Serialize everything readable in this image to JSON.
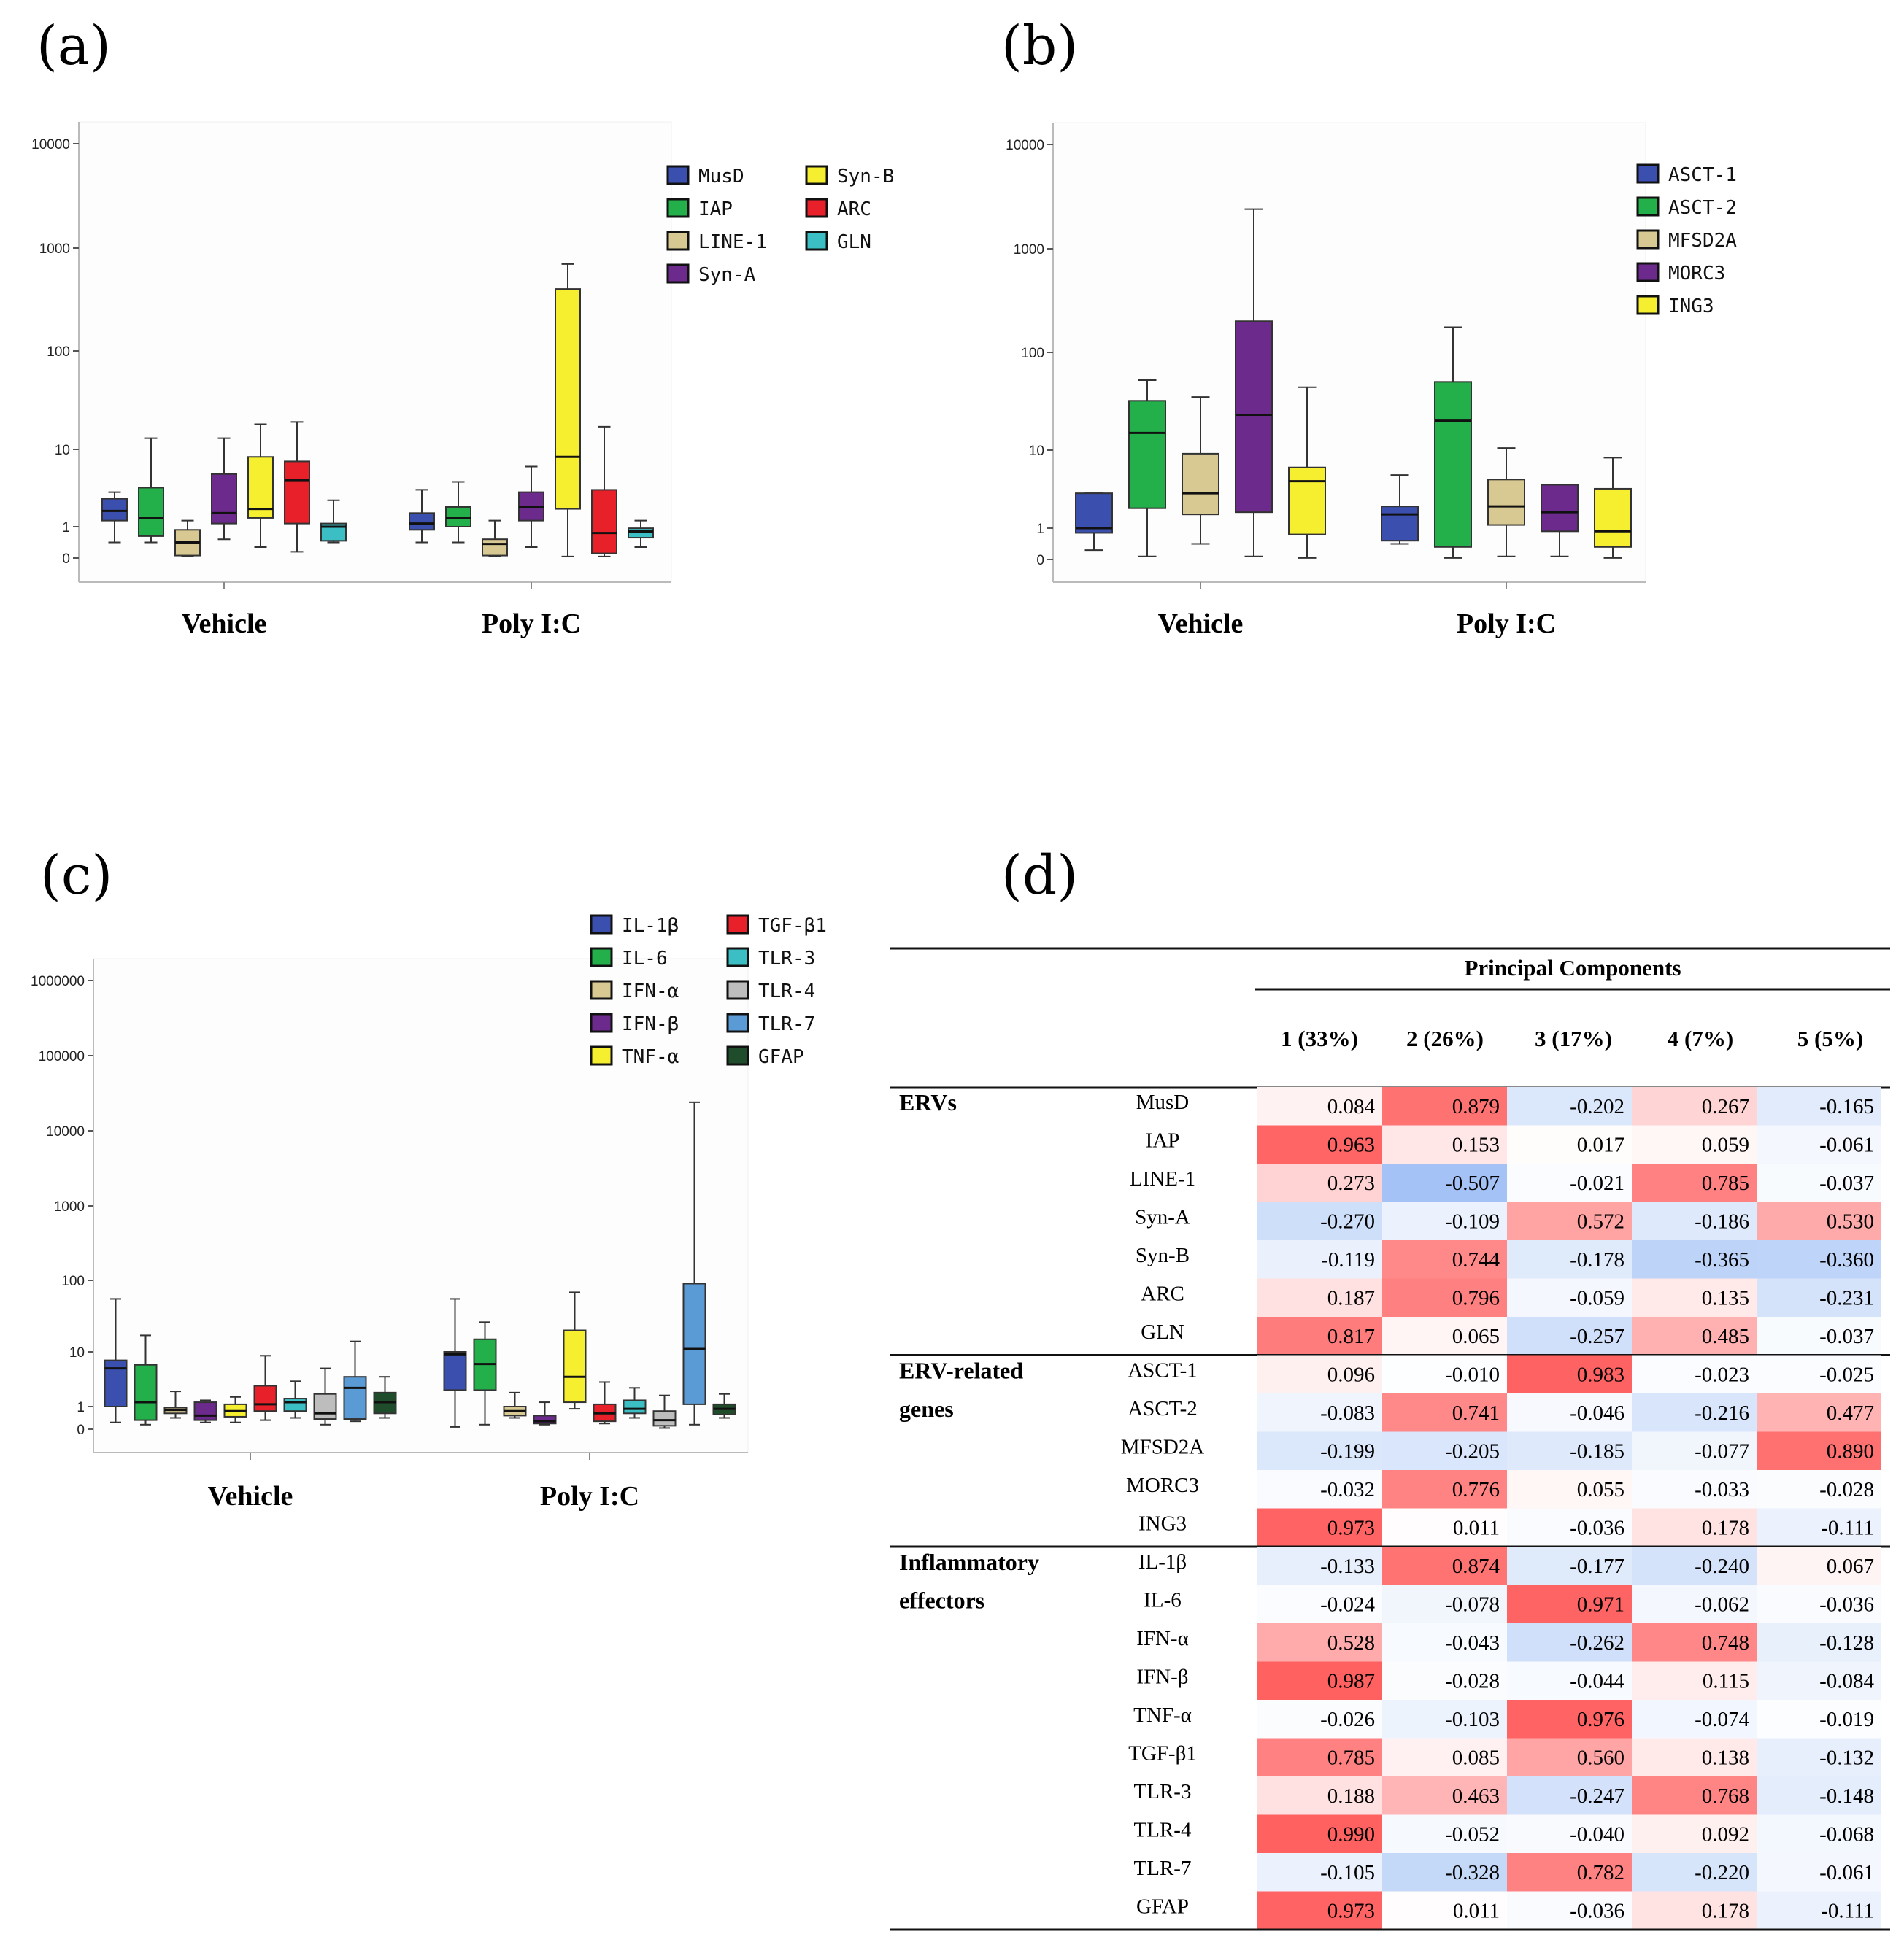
{
  "panel_labels": [
    "(a)",
    "(b)",
    "(c)",
    "(d)"
  ],
  "chart_data": [
    {
      "type": "boxplot",
      "panel": "(a)",
      "yscale": "log",
      "yticks": [
        "0",
        "1",
        "10",
        "100",
        "1000",
        "10000"
      ],
      "groups": [
        "Vehicle",
        "Poly I:C"
      ],
      "legend": [
        "MusD",
        "IAP",
        "LINE-1",
        "Syn-A",
        "Syn-B",
        "ARC",
        "GLN"
      ],
      "colors": [
        "#3a4fae",
        "#23b04a",
        "#d8c891",
        "#6b2a8c",
        "#f5ef30",
        "#e8202a",
        "#3bbfc4"
      ],
      "series": [
        {
          "name": "MusD",
          "data": [
            [
              0.5,
              1.2,
              1.6,
              2.3,
              2.8
            ],
            [
              0.5,
              0.9,
              1.1,
              1.5,
              3.0
            ]
          ]
        },
        {
          "name": "IAP",
          "data": [
            [
              0.5,
              0.7,
              1.3,
              3.2,
              13
            ],
            [
              0.5,
              1.0,
              1.3,
              1.8,
              3.8
            ]
          ]
        },
        {
          "name": "LINE-1",
          "data": [
            [
              0.05,
              0.08,
              0.5,
              0.9,
              1.2
            ],
            [
              0.05,
              0.08,
              0.45,
              0.6,
              1.2
            ]
          ]
        },
        {
          "name": "Syn-A",
          "data": [
            [
              0.6,
              1.1,
              1.5,
              4.8,
              13
            ],
            [
              0.35,
              1.2,
              1.8,
              2.8,
              6.0
            ]
          ]
        },
        {
          "name": "Syn-B",
          "data": [
            [
              0.35,
              1.3,
              1.7,
              8.0,
              18
            ],
            [
              0.05,
              1.7,
              8.0,
              400,
              700
            ]
          ]
        },
        {
          "name": "ARC",
          "data": [
            [
              0.2,
              1.1,
              4.0,
              7.0,
              19
            ],
            [
              0.05,
              0.15,
              0.8,
              3.0,
              17
            ]
          ]
        },
        {
          "name": "GLN",
          "data": [
            [
              0.5,
              0.55,
              1.0,
              1.1,
              2.2
            ],
            [
              0.35,
              0.65,
              0.85,
              0.95,
              1.2
            ]
          ]
        }
      ]
    },
    {
      "type": "boxplot",
      "panel": "(b)",
      "yscale": "log",
      "yticks": [
        "0",
        "1",
        "10",
        "100",
        "1000",
        "10000"
      ],
      "groups": [
        "Vehicle",
        "Poly I:C"
      ],
      "legend": [
        "ASCT-1",
        "ASCT-2",
        "MFSD2A",
        "MORC3",
        "ING3"
      ],
      "colors": [
        "#3a4fae",
        "#23b04a",
        "#d8c891",
        "#6b2a8c",
        "#f5ef30"
      ],
      "series": [
        {
          "name": "ASCT-1",
          "data": [
            [
              0.3,
              0.85,
              1.0,
              2.8,
              2.8
            ],
            [
              0.5,
              0.6,
              1.5,
              1.9,
              4.8
            ]
          ]
        },
        {
          "name": "ASCT-2",
          "data": [
            [
              0.1,
              1.8,
              15,
              32,
              52
            ],
            [
              0.05,
              0.4,
              20,
              50,
              175
            ]
          ]
        },
        {
          "name": "MFSD2A",
          "data": [
            [
              0.5,
              1.5,
              2.8,
              9.0,
              35
            ],
            [
              0.1,
              1.1,
              1.9,
              4.2,
              10.5
            ]
          ]
        },
        {
          "name": "MORC3",
          "data": [
            [
              0.1,
              1.6,
              23,
              200,
              2400
            ],
            [
              0.1,
              0.9,
              1.6,
              3.6,
              3.6
            ]
          ]
        },
        {
          "name": "ING3",
          "data": [
            [
              0.05,
              0.8,
              4.0,
              6.0,
              44
            ],
            [
              0.05,
              0.4,
              0.9,
              3.2,
              8.0
            ]
          ]
        }
      ]
    },
    {
      "type": "boxplot",
      "panel": "(c)",
      "yscale": "log",
      "yticks": [
        "0",
        "1",
        "10",
        "100",
        "1000",
        "10000",
        "100000",
        "1000000"
      ],
      "groups": [
        "Vehicle",
        "Poly I:C"
      ],
      "legend": [
        "IL-1β",
        "IL-6",
        "IFN-α",
        "IFN-β",
        "TNF-α",
        "TGF-β1",
        "TLR-3",
        "TLR-4",
        "TLR-7",
        "GFAP"
      ],
      "colors": [
        "#3a4fae",
        "#23b04a",
        "#d8c891",
        "#6b2a8c",
        "#f5ef30",
        "#e8202a",
        "#3bbfc4",
        "#bdbdbd",
        "#5b9bd5",
        "#1f4d2b"
      ],
      "series": [
        {
          "name": "IL-1β",
          "data": [
            [
              0.3,
              1.0,
              5.0,
              7.0,
              55
            ],
            [
              0.1,
              2.0,
              9.0,
              10,
              55
            ]
          ]
        },
        {
          "name": "IL-6",
          "data": [
            [
              0.2,
              0.4,
              1.2,
              5.8,
              17
            ],
            [
              0.2,
              2.0,
              6.0,
              15,
              26
            ]
          ]
        },
        {
          "name": "IFN-α",
          "data": [
            [
              0.5,
              0.7,
              0.85,
              0.95,
              1.9
            ],
            [
              0.5,
              0.6,
              0.8,
              1.0,
              1.8
            ]
          ]
        },
        {
          "name": "IFN-β",
          "data": [
            [
              0.3,
              0.4,
              0.6,
              1.2,
              1.3
            ],
            [
              0.2,
              0.25,
              0.35,
              0.6,
              1.2
            ]
          ]
        },
        {
          "name": "TNF-α",
          "data": [
            [
              0.3,
              0.55,
              0.8,
              1.1,
              1.5
            ],
            [
              0.9,
              1.2,
              3.5,
              20,
              68
            ]
          ]
        },
        {
          "name": "TGF-β1",
          "data": [
            [
              0.4,
              0.8,
              1.1,
              2.4,
              8.5
            ],
            [
              0.25,
              0.35,
              0.7,
              1.1,
              2.8
            ]
          ]
        },
        {
          "name": "TLR-3",
          "data": [
            [
              0.5,
              0.8,
              1.2,
              1.4,
              2.9
            ],
            [
              0.5,
              0.7,
              0.9,
              1.3,
              2.2
            ]
          ]
        },
        {
          "name": "TLR-4",
          "data": [
            [
              0.2,
              0.45,
              0.7,
              1.7,
              5.0
            ],
            [
              0.05,
              0.15,
              0.4,
              0.8,
              1.6
            ]
          ]
        },
        {
          "name": "TLR-7",
          "data": [
            [
              0.35,
              0.45,
              2.2,
              3.5,
              14
            ],
            [
              0.2,
              1.1,
              11,
              90,
              24000
            ]
          ]
        },
        {
          "name": "GFAP",
          "data": [
            [
              0.5,
              0.7,
              1.2,
              1.8,
              3.5
            ],
            [
              0.5,
              0.65,
              0.9,
              1.1,
              1.7
            ]
          ]
        }
      ]
    },
    {
      "type": "table",
      "panel": "(d)",
      "title": "Principal Components",
      "columns": [
        "1 (33%)",
        "2 (26%)",
        "3 (17%)",
        "4 (7%)",
        "5 (5%)"
      ],
      "sections": [
        {
          "name_lines": [
            "ERVs"
          ],
          "rows": [
            {
              "label": "MusD",
              "values": [
                "0.084",
                "0.879",
                "-0.202",
                "0.267",
                "-0.165"
              ]
            },
            {
              "label": "IAP",
              "values": [
                "0.963",
                "0.153",
                "0.017",
                "0.059",
                "-0.061"
              ]
            },
            {
              "label": "LINE-1",
              "values": [
                "0.273",
                "-0.507",
                "-0.021",
                "0.785",
                "-0.037"
              ]
            },
            {
              "label": "Syn-A",
              "values": [
                "-0.270",
                "-0.109",
                "0.572",
                "-0.186",
                "0.530"
              ]
            },
            {
              "label": "Syn-B",
              "values": [
                "-0.119",
                "0.744",
                "-0.178",
                "-0.365",
                "-0.360"
              ]
            },
            {
              "label": "ARC",
              "values": [
                "0.187",
                "0.796",
                "-0.059",
                "0.135",
                "-0.231"
              ]
            },
            {
              "label": "GLN",
              "values": [
                "0.817",
                "0.065",
                "-0.257",
                "0.485",
                "-0.037"
              ]
            }
          ]
        },
        {
          "name_lines": [
            "ERV-related",
            "genes"
          ],
          "rows": [
            {
              "label": "ASCT-1",
              "values": [
                "0.096",
                "-0.010",
                "0.983",
                "-0.023",
                "-0.025"
              ]
            },
            {
              "label": "ASCT-2",
              "values": [
                "-0.083",
                "0.741",
                "-0.046",
                "-0.216",
                "0.477"
              ]
            },
            {
              "label": "MFSD2A",
              "values": [
                "-0.199",
                "-0.205",
                "-0.185",
                "-0.077",
                "0.890"
              ]
            },
            {
              "label": "MORC3",
              "values": [
                "-0.032",
                "0.776",
                "0.055",
                "-0.033",
                "-0.028"
              ]
            },
            {
              "label": "ING3",
              "values": [
                "0.973",
                "0.011",
                "-0.036",
                "0.178",
                "-0.111"
              ]
            }
          ]
        },
        {
          "name_lines": [
            "Inflammatory",
            "effectors"
          ],
          "rows": [
            {
              "label": "IL-1β",
              "values": [
                "-0.133",
                "0.874",
                "-0.177",
                "-0.240",
                "0.067"
              ]
            },
            {
              "label": "IL-6",
              "values": [
                "-0.024",
                "-0.078",
                "0.971",
                "-0.062",
                "-0.036"
              ]
            },
            {
              "label": "IFN-α",
              "values": [
                "0.528",
                "-0.043",
                "-0.262",
                "0.748",
                "-0.128"
              ]
            },
            {
              "label": "IFN-β",
              "values": [
                "0.987",
                "-0.028",
                "-0.044",
                "0.115",
                "-0.084"
              ]
            },
            {
              "label": "TNF-α",
              "values": [
                "-0.026",
                "-0.103",
                "0.976",
                "-0.074",
                "-0.019"
              ]
            },
            {
              "label": "TGF-β1",
              "values": [
                "0.785",
                "0.085",
                "0.560",
                "0.138",
                "-0.132"
              ]
            },
            {
              "label": "TLR-3",
              "values": [
                "0.188",
                "0.463",
                "-0.247",
                "0.768",
                "-0.148"
              ]
            },
            {
              "label": "TLR-4",
              "values": [
                "0.990",
                "-0.052",
                "-0.040",
                "0.092",
                "-0.068"
              ]
            },
            {
              "label": "TLR-7",
              "values": [
                "-0.105",
                "-0.328",
                "0.782",
                "-0.220",
                "-0.061"
              ]
            },
            {
              "label": "GFAP",
              "values": [
                "0.973",
                "0.011",
                "-0.036",
                "0.178",
                "-0.111"
              ]
            }
          ]
        }
      ]
    }
  ]
}
